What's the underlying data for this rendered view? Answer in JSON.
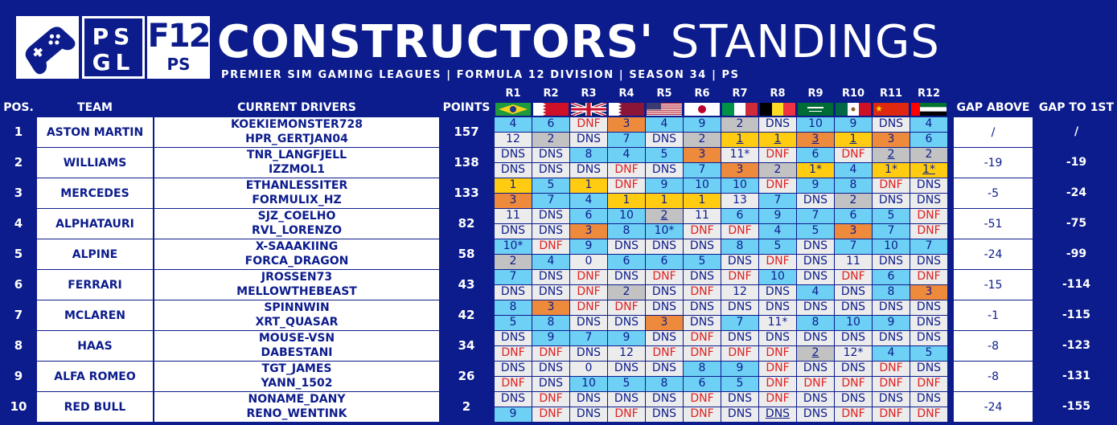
{
  "header": {
    "psgl_logo": "PSGL",
    "f12_logo_big": "F12",
    "f12_logo_small": "PS",
    "title_bold": "CONSTRUCTORS'",
    "title_light": "STANDINGS",
    "subtitle": "PREMIER SIM GAMING LEAGUES | FORMULA 12 DIVISION | SEASON 34 | PS",
    "pad_icon": "gamepad-icon"
  },
  "columns": {
    "pos": "POS.",
    "team": "TEAM",
    "drivers": "CURRENT DRIVERS",
    "points": "POINTS",
    "gap_above": "GAP ABOVE",
    "gap_first": "GAP TO 1ST"
  },
  "rounds": [
    "R1",
    "R2",
    "R3",
    "R4",
    "R5",
    "R6",
    "R7",
    "R8",
    "R9",
    "R10",
    "R11",
    "R12"
  ],
  "flags": [
    "brazil-flag",
    "bahrain-flag",
    "uk-flag",
    "qatar-flag",
    "usa-flag",
    "japan-flag",
    "italy-flag",
    "belgium-flag",
    "saudi-flag",
    "mexico-flag",
    "china-flag",
    "uae-flag"
  ],
  "colors": {
    "background": "#0c1c8c",
    "points_cell": "#6fd0f5",
    "p1": "#ffcc11",
    "p2": "#c2c2c2",
    "p3": "#ee8a3c",
    "dnf_text": "#e02020"
  },
  "teams": [
    {
      "pos": "1",
      "name": "ASTON MARTIN",
      "drivers": [
        "KOEKIEMONSTER728",
        "HPR_GERTJAN04"
      ],
      "points": "157",
      "gap_above": "/",
      "gap_first": "/",
      "results": [
        [
          "4",
          "6",
          "DNF",
          "3",
          "4",
          "9",
          "2",
          "DNS",
          "10",
          "9",
          "DNS",
          "4"
        ],
        [
          "12",
          "2",
          "DNS",
          "7",
          "DNS",
          "2",
          "1",
          "1",
          "3",
          "1",
          "3",
          "6"
        ]
      ]
    },
    {
      "pos": "2",
      "name": "WILLIAMS",
      "drivers": [
        "TNR_LANGFJELL",
        "IZZMOL1"
      ],
      "points": "138",
      "gap_above": "-19",
      "gap_first": "-19",
      "results": [
        [
          "DNS",
          "DNS",
          "8",
          "4",
          "5",
          "3",
          "11*",
          "DNF",
          "6",
          "DNF",
          "2",
          "2"
        ],
        [
          "DNS",
          "DNS",
          "DNS",
          "DNF",
          "DNS",
          "7",
          "3",
          "2",
          "1*",
          "4",
          "1*",
          "1*"
        ]
      ]
    },
    {
      "pos": "3",
      "name": "MERCEDES",
      "drivers": [
        "ETHANLESSITER",
        "FORMULIX_HZ"
      ],
      "points": "133",
      "gap_above": "-5",
      "gap_first": "-24",
      "results": [
        [
          "1",
          "5",
          "1",
          "DNF",
          "9",
          "10",
          "10",
          "DNF",
          "9",
          "8",
          "DNF",
          "DNS"
        ],
        [
          "3",
          "7",
          "4",
          "1",
          "1",
          "1",
          "13",
          "7",
          "DNS",
          "2",
          "DNS",
          "DNS"
        ]
      ]
    },
    {
      "pos": "4",
      "name": "ALPHATAURI",
      "drivers": [
        "SJZ_COELHO",
        "RVL_LORENZO"
      ],
      "points": "82",
      "gap_above": "-51",
      "gap_first": "-75",
      "results": [
        [
          "11",
          "DNS",
          "6",
          "10",
          "2",
          "11",
          "6",
          "9",
          "7",
          "6",
          "5",
          "DNF"
        ],
        [
          "DNS",
          "DNS",
          "3",
          "8",
          "10*",
          "DNF",
          "DNF",
          "4",
          "5",
          "3",
          "7",
          "DNF"
        ]
      ]
    },
    {
      "pos": "5",
      "name": "ALPINE",
      "drivers": [
        "X-SAAAKIING",
        "FORCA_DRAGON"
      ],
      "points": "58",
      "gap_above": "-24",
      "gap_first": "-99",
      "results": [
        [
          "10*",
          "DNF",
          "9",
          "DNS",
          "DNS",
          "DNS",
          "8",
          "5",
          "DNS",
          "7",
          "10",
          "7"
        ],
        [
          "2",
          "4",
          "0",
          "6",
          "6",
          "5",
          "DNS",
          "DNF",
          "DNS",
          "11",
          "DNS",
          "DNS"
        ]
      ]
    },
    {
      "pos": "6",
      "name": "FERRARI",
      "drivers": [
        "JROSSEN73",
        "MELLOWTHEBEAST"
      ],
      "points": "43",
      "gap_above": "-15",
      "gap_first": "-114",
      "results": [
        [
          "7",
          "DNS",
          "DNF",
          "DNS",
          "DNF",
          "DNS",
          "DNF",
          "10",
          "DNS",
          "DNF",
          "6",
          "DNF"
        ],
        [
          "DNS",
          "DNS",
          "DNF",
          "2",
          "DNS",
          "DNF",
          "12",
          "DNS",
          "4",
          "DNS",
          "8",
          "3"
        ]
      ]
    },
    {
      "pos": "7",
      "name": "MCLAREN",
      "drivers": [
        "SPINNWIN",
        "XRT_QUASAR"
      ],
      "points": "42",
      "gap_above": "-1",
      "gap_first": "-115",
      "results": [
        [
          "8",
          "3",
          "DNF",
          "DNF",
          "DNS",
          "DNS",
          "DNS",
          "DNS",
          "DNS",
          "DNS",
          "DNS",
          "DNS"
        ],
        [
          "5",
          "8",
          "DNS",
          "DNS",
          "3",
          "DNS",
          "7",
          "11*",
          "8",
          "10",
          "9",
          "DNS"
        ]
      ]
    },
    {
      "pos": "8",
      "name": "HAAS",
      "drivers": [
        "MOUSE-VSN",
        "DABESTANI"
      ],
      "points": "34",
      "gap_above": "-8",
      "gap_first": "-123",
      "results": [
        [
          "DNS",
          "9",
          "7",
          "9",
          "DNS",
          "DNF",
          "DNS",
          "DNS",
          "DNS",
          "DNS",
          "DNS",
          "DNS"
        ],
        [
          "DNF",
          "DNF",
          "DNS",
          "12",
          "DNF",
          "DNF",
          "DNF",
          "DNF",
          "2",
          "12*",
          "4",
          "5"
        ]
      ]
    },
    {
      "pos": "9",
      "name": "ALFA ROMEO",
      "drivers": [
        "TGT_JAMES",
        "YANN_1502"
      ],
      "points": "26",
      "gap_above": "-8",
      "gap_first": "-131",
      "results": [
        [
          "DNS",
          "DNS",
          "0",
          "DNS",
          "DNS",
          "8",
          "9",
          "DNF",
          "DNS",
          "DNS",
          "DNF",
          "DNS"
        ],
        [
          "DNF",
          "DNS",
          "10",
          "5",
          "8",
          "6",
          "5",
          "DNF",
          "DNF",
          "DNF",
          "DNF",
          "DNF"
        ]
      ]
    },
    {
      "pos": "10",
      "name": "RED BULL",
      "drivers": [
        "NONAME_DANY",
        "RENO_WENTINK"
      ],
      "points": "2",
      "gap_above": "-24",
      "gap_first": "-155",
      "results": [
        [
          "DNS",
          "DNF",
          "DNS",
          "DNS",
          "DNS",
          "DNF",
          "DNS",
          "DNF",
          "DNS",
          "DNS",
          "DNS",
          "DNS"
        ],
        [
          "9",
          "DNF",
          "DNS",
          "DNF",
          "DNS",
          "DNF",
          "DNS",
          "DNS",
          "DNS",
          "DNF",
          "DNF",
          "DNF"
        ]
      ]
    }
  ]
}
